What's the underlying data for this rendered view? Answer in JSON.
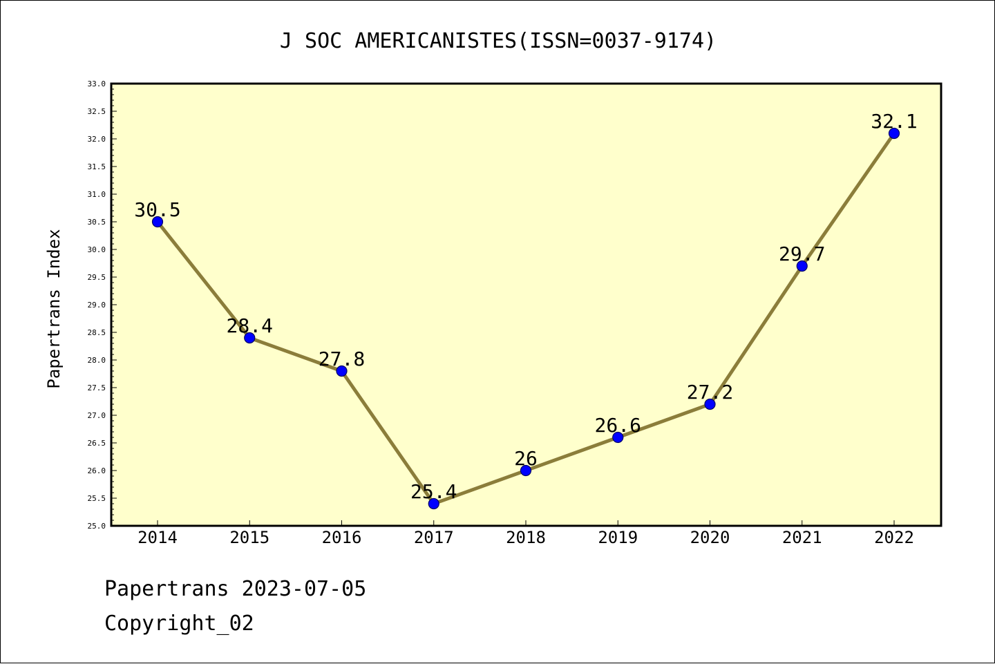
{
  "chart_data": {
    "type": "line",
    "title": "J SOC AMERICANISTES(ISSN=0037-9174)",
    "xlabel": "",
    "ylabel": "Papertrans Index",
    "x": [
      "2014",
      "2015",
      "2016",
      "2017",
      "2018",
      "2019",
      "2020",
      "2021",
      "2022"
    ],
    "series": [
      {
        "values": [
          30.5,
          28.4,
          27.8,
          25.4,
          26.0,
          26.6,
          27.2,
          29.7,
          32.1
        ],
        "labels": [
          "30.5",
          "28.4",
          "27.8",
          "25.4",
          "26",
          "26.6",
          "27.2",
          "29.7",
          "32.1"
        ]
      }
    ],
    "ylim": [
      25.0,
      33.0
    ],
    "yticks": [
      "25.0",
      "25.5",
      "26.0",
      "26.5",
      "27.0",
      "27.5",
      "28.0",
      "28.5",
      "29.0",
      "29.5",
      "30.0",
      "30.5",
      "31.0",
      "31.5",
      "32.0",
      "32.5",
      "33.0"
    ],
    "grid": false,
    "legend": "none",
    "colors": {
      "plot_background": "#ffffcc",
      "line": "#8b7d3a",
      "marker_fill": "#0000ff",
      "marker_edge": "#000066",
      "axes": "#000000"
    }
  },
  "footer": {
    "line1": "Papertrans 2023-07-05",
    "line2": "Copyright_02"
  }
}
